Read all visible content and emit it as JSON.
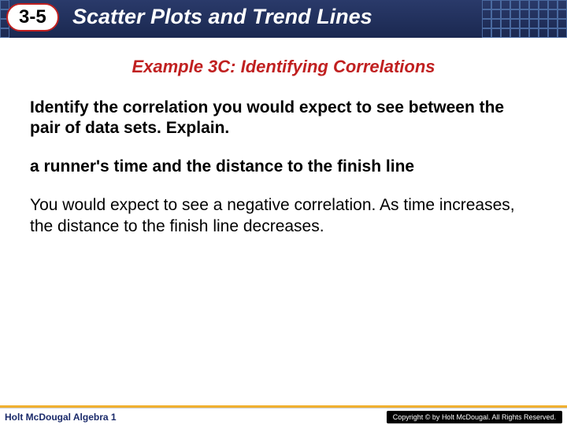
{
  "header": {
    "lesson_number": "3-5",
    "title": "Scatter Plots and Trend Lines",
    "bg_gradient_top": "#2a3a6a",
    "bg_gradient_bottom": "#1a2850",
    "grid_border": "#4a6aa0",
    "badge_border": "#c02020",
    "title_color": "#ffffff"
  },
  "content": {
    "example_title": "Example 3C: Identifying Correlations",
    "example_title_color": "#c02020",
    "prompt": "Identify the correlation you would expect to see between the pair of data sets. Explain.",
    "subprompt": "a runner's time and the distance to the finish line",
    "answer": "You would expect to see a negative correlation. As time increases, the distance to the finish line decreases.",
    "text_color": "#000000",
    "fontsize_body": 21,
    "fontsize_example": 22
  },
  "footer": {
    "left_text": "Holt McDougal Algebra 1",
    "left_color": "#1a2a6a",
    "right_text": "Copyright © by Holt McDougal. All Rights Reserved.",
    "right_bg": "#000000",
    "right_color": "#ffffff",
    "accent_line_color": "#f0b030"
  }
}
